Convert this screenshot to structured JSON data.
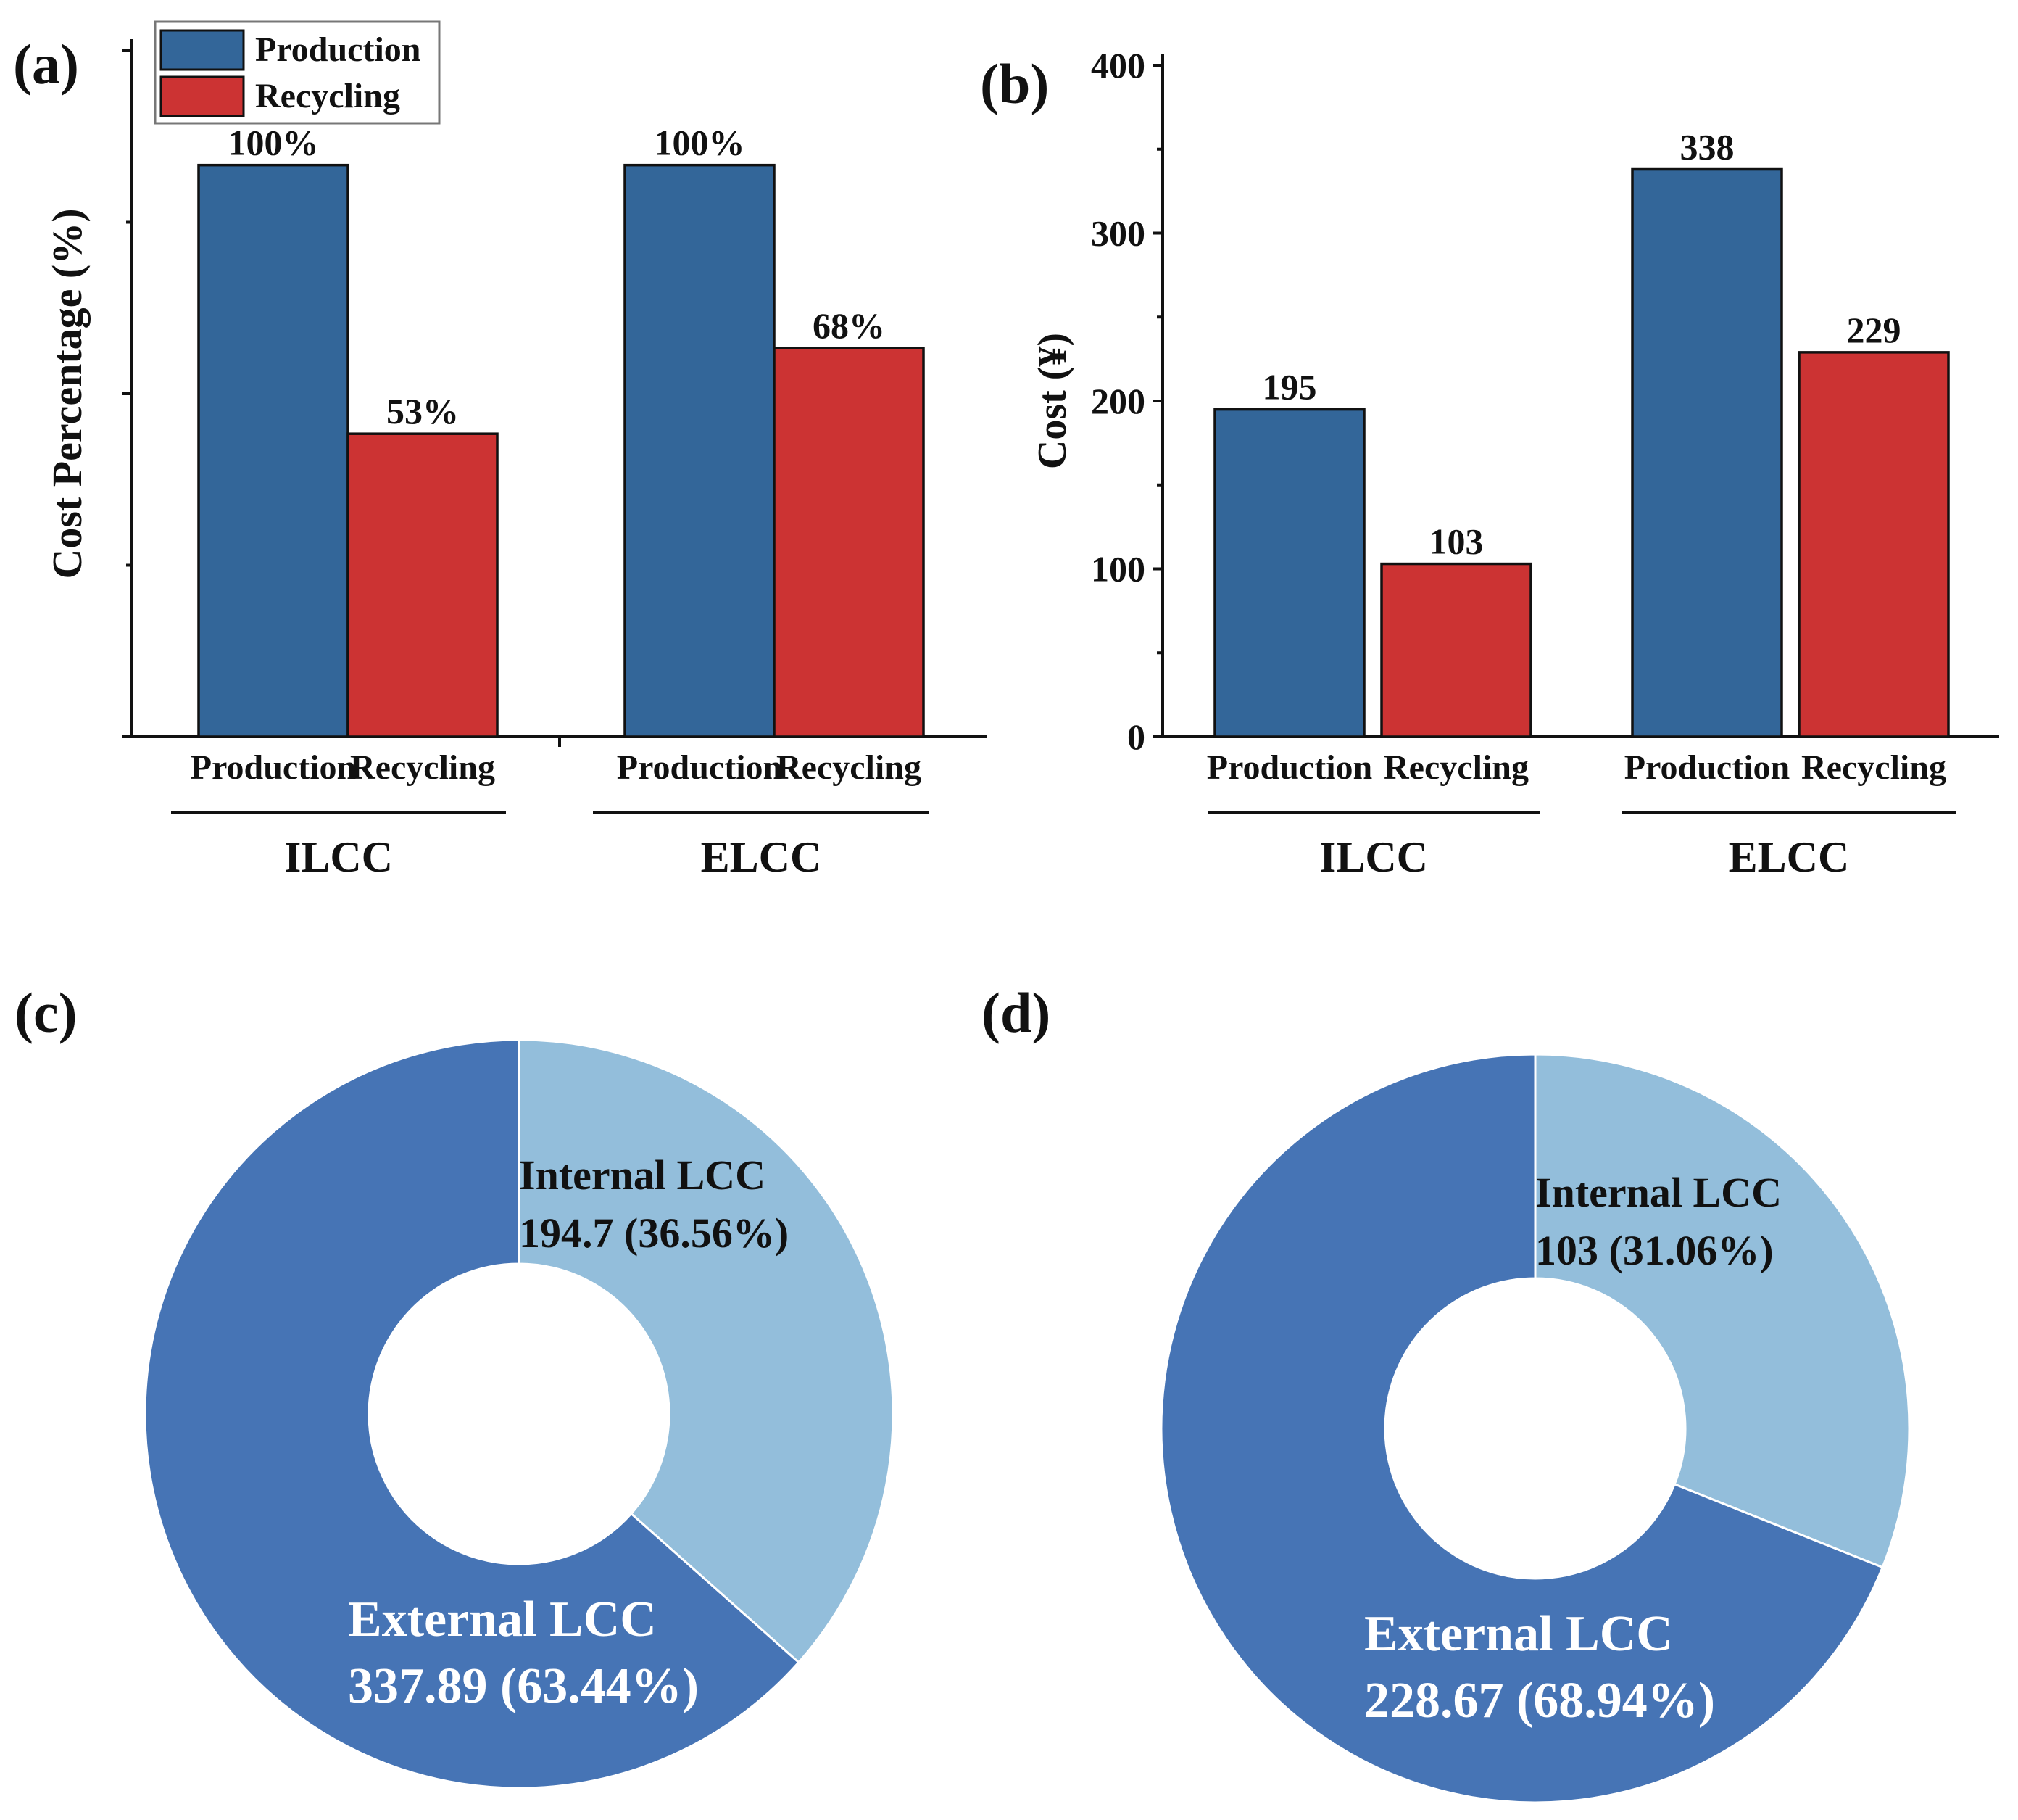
{
  "panel_labels": {
    "a": "(a)",
    "b": "(b)",
    "c": "(c)",
    "d": "(d)"
  },
  "colors": {
    "production": "#336699",
    "recycling": "#cc3333",
    "external": "#4674b5",
    "internal": "#93bedb",
    "text_dark": "#111111",
    "text_light": "#ffffff"
  },
  "legend": [
    {
      "name": "Production",
      "color_key": "production"
    },
    {
      "name": "Recycling",
      "color_key": "recycling"
    }
  ],
  "chart_data": [
    {
      "type": "bar",
      "panel": "(a)",
      "ylabel": "Cost Percentage (%)",
      "ylim": [
        0,
        120
      ],
      "y_ticks_major": [
        0,
        60,
        120
      ],
      "y_ticks_minor": [
        30,
        90
      ],
      "show_tick_labels": false,
      "groups": [
        {
          "name": "ILCC",
          "categories": [
            "Production",
            "Recycling"
          ],
          "values": [
            100,
            53
          ],
          "labels": [
            "100%",
            "53%"
          ]
        },
        {
          "name": "ELCC",
          "categories": [
            "Production",
            "Recycling"
          ],
          "values": [
            100,
            68
          ],
          "labels": [
            "100%",
            "68%"
          ]
        }
      ]
    },
    {
      "type": "bar",
      "panel": "(b)",
      "ylabel": "Cost (¥)",
      "ylim": [
        0,
        400
      ],
      "y_ticks_major": [
        0,
        100,
        200,
        300,
        400
      ],
      "y_ticks_minor": [
        50,
        150,
        250,
        350
      ],
      "y_tick_labels": [
        "0",
        "100",
        "200",
        "300",
        "400"
      ],
      "groups": [
        {
          "name": "ILCC",
          "categories": [
            "Production",
            "Recycling"
          ],
          "values": [
            195,
            103
          ],
          "labels": [
            "195",
            "103"
          ]
        },
        {
          "name": "ELCC",
          "categories": [
            "Production",
            "Recycling"
          ],
          "values": [
            338,
            229
          ],
          "labels": [
            "338",
            "229"
          ]
        }
      ]
    },
    {
      "type": "pie",
      "panel": "(c)",
      "slices": [
        {
          "name": "Internal LCC",
          "value": 194.7,
          "label": "194.7 (36.56%)",
          "color_key": "internal"
        },
        {
          "name": "External  LCC",
          "value": 337.89,
          "label": "337.89 (63.44%)",
          "color_key": "external"
        }
      ]
    },
    {
      "type": "pie",
      "panel": "(d)",
      "slices": [
        {
          "name": "Internal LCC",
          "value": 103,
          "label": "103 (31.06%)",
          "color_key": "internal"
        },
        {
          "name": "External  LCC",
          "value": 228.67,
          "label": "228.67 (68.94%)",
          "color_key": "external"
        }
      ]
    }
  ]
}
